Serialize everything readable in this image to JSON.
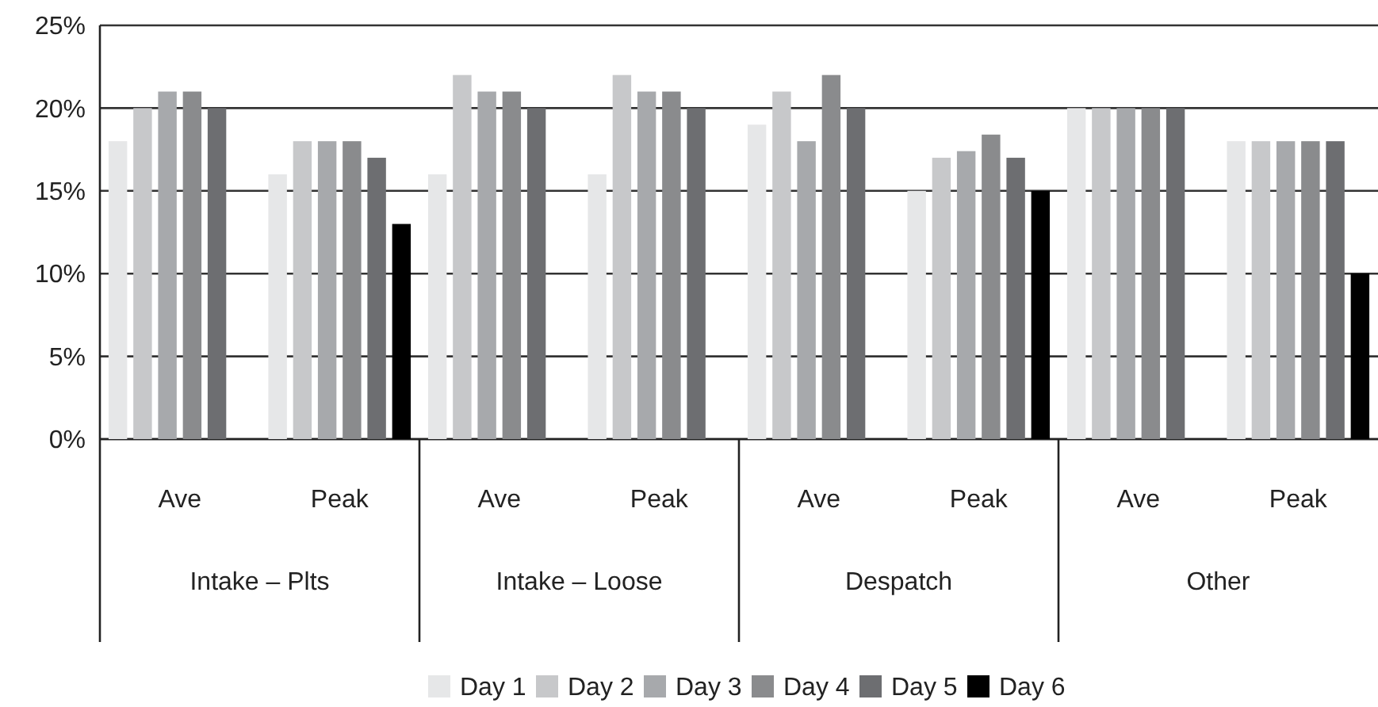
{
  "chart_data": {
    "type": "bar",
    "categories": [
      "Ave",
      "Peak",
      "Ave",
      "Peak",
      "Ave",
      "Peak",
      "Ave",
      "Peak"
    ],
    "series": [
      {
        "name": "Day 1",
        "color": "#e6e7e8",
        "values": [
          18,
          16,
          16,
          16,
          19,
          15,
          20,
          18
        ]
      },
      {
        "name": "Day 2",
        "color": "#c7c8ca",
        "values": [
          20,
          18,
          22,
          22,
          21,
          17,
          20,
          18
        ]
      },
      {
        "name": "Day 3",
        "color": "#a7a9ac",
        "values": [
          21,
          18,
          21,
          21,
          18,
          17.4,
          20,
          18
        ]
      },
      {
        "name": "Day 4",
        "color": "#8a8b8d",
        "values": [
          21,
          18,
          21,
          21,
          22,
          18.4,
          20,
          18
        ]
      },
      {
        "name": "Day 5",
        "color": "#6d6e71",
        "values": [
          20,
          17,
          20,
          20,
          20,
          17,
          20,
          18
        ]
      },
      {
        "name": "Day 6",
        "color": "#000000",
        "values": [
          null,
          13,
          null,
          null,
          null,
          15,
          null,
          10
        ]
      }
    ],
    "annotations": [
      "Intake – Plts",
      "Intake – Loose",
      "Despatch",
      "Other"
    ],
    "ylim": [
      0,
      25
    ],
    "yticks": [
      {
        "value": 0,
        "label": "0%"
      },
      {
        "value": 5,
        "label": "5%"
      },
      {
        "value": 10,
        "label": "10%"
      },
      {
        "value": 15,
        "label": "15%"
      },
      {
        "value": 20,
        "label": "20%"
      },
      {
        "value": 25,
        "label": "25%"
      }
    ],
    "grid": "y",
    "legend": "bottom"
  }
}
